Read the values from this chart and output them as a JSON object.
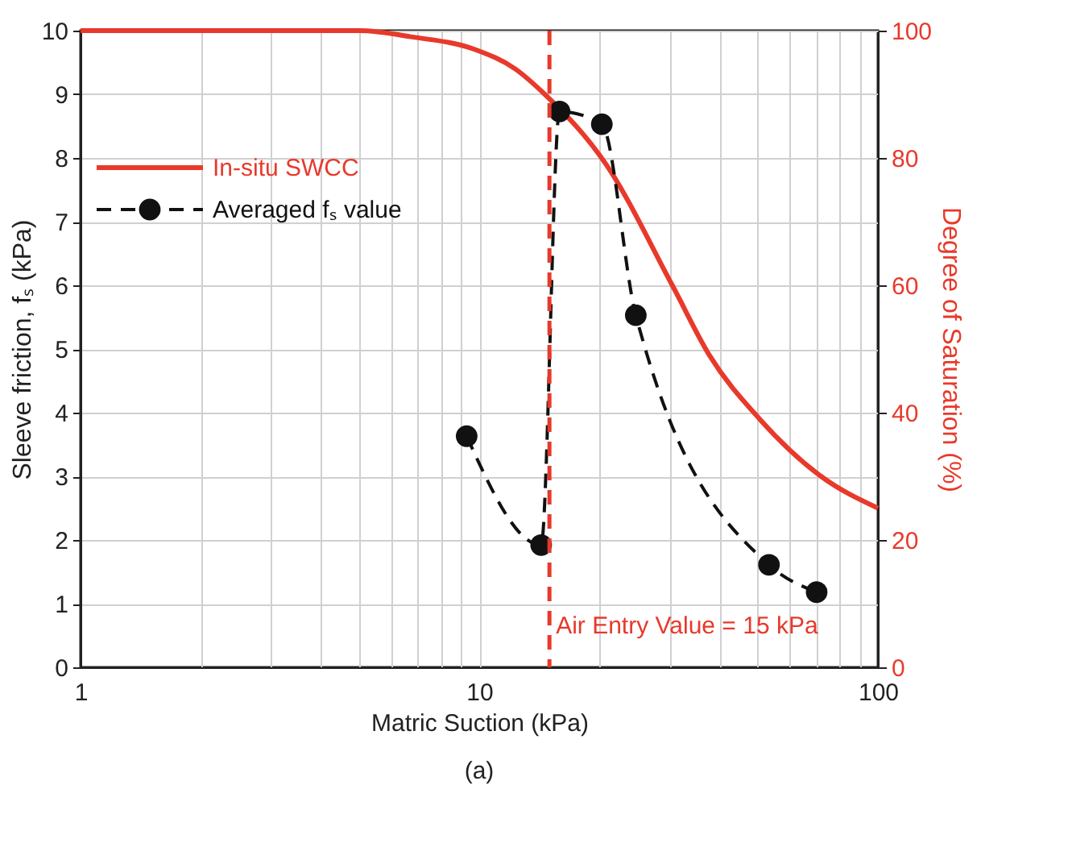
{
  "chart_data": {
    "type": "line",
    "xlabel": "Matric Suction (kPa)",
    "ylabel": "Sleeve  friction, fₛ (kPa)",
    "y2label": "Degree of Saturation (%)",
    "log": "x",
    "grid": true,
    "legend": "top left",
    "xlim": [
      1,
      100
    ],
    "xticks": [
      1,
      {
        "value": 2,
        "label": null
      },
      {
        "value": 3,
        "label": null
      },
      {
        "value": 4,
        "label": null
      },
      {
        "value": 5,
        "label": null
      },
      {
        "value": 6,
        "label": null
      },
      {
        "value": 7,
        "label": null
      },
      {
        "value": 8,
        "label": null
      },
      {
        "value": 9,
        "label": null
      },
      10,
      {
        "value": 20,
        "label": null
      },
      {
        "value": 30,
        "label": null
      },
      {
        "value": 40,
        "label": null
      },
      {
        "value": 50,
        "label": null
      },
      {
        "value": 60,
        "label": null
      },
      {
        "value": 70,
        "label": null
      },
      {
        "value": 80,
        "label": null
      },
      {
        "value": 90,
        "label": null
      },
      100
    ],
    "ylim": [
      0,
      10
    ],
    "yticks": [
      0,
      1,
      2,
      3,
      4,
      5,
      6,
      7,
      8,
      9,
      10
    ],
    "y2lim": [
      0,
      100
    ],
    "y2ticks": [
      0,
      20,
      40,
      60,
      80,
      100
    ],
    "series": [
      {
        "name": "In-situ SWCC",
        "color": "#e8392b",
        "axis": "y2",
        "line_style": "solid",
        "marker": "none",
        "x": [
          1,
          2,
          3,
          5,
          6.8,
          9.8,
          12.3,
          14.6,
          20.8,
          30.5,
          37.8,
          50.5,
          72,
          100
        ],
        "values": [
          100,
          100,
          100,
          100,
          99,
          97,
          94,
          90,
          79,
          60,
          49,
          39,
          30,
          25
        ]
      },
      {
        "name": "Averaged fₛ value",
        "color": "#111111",
        "axis": "y",
        "line_style": "dashed",
        "marker": "circle",
        "x": [
          9.3,
          14.3,
          15.9,
          20.3,
          24.7,
          53.3,
          70.2
        ],
        "values": [
          3.63,
          1.92,
          8.73,
          8.53,
          5.53,
          1.61,
          1.18
        ]
      }
    ],
    "ref_lines": [
      {
        "axis": "x",
        "value": 15,
        "label": "Air Entry Value = 15 kPa",
        "color": "#e8392b",
        "line_style": "dashed"
      }
    ],
    "annotations": [
      "(a)"
    ]
  }
}
